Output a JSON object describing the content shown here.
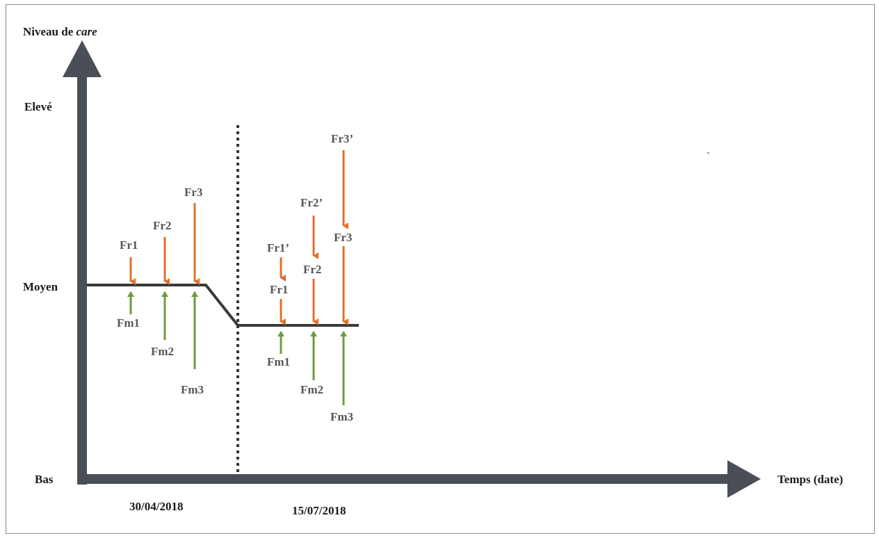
{
  "axes": {
    "y_title_prefix": "Niveau de",
    "y_title_emphasis": "care",
    "y_levels": {
      "high": "Elevé",
      "mid": "Moyen",
      "low": "Bas"
    },
    "x_title": "Temps (date)",
    "dates": [
      "30/04/2018",
      "15/07/2018"
    ]
  },
  "colors": {
    "axis": "#4a4f57",
    "level_line": "#3a3a3a",
    "risk_arrow": "#e0712c",
    "mitigation_arrow": "#6a9e3b",
    "divider": "#333333",
    "label": "#555555"
  },
  "period1": {
    "risk": [
      {
        "label": "Fr1"
      },
      {
        "label": "Fr2"
      },
      {
        "label": "Fr3"
      }
    ],
    "mitigation": [
      {
        "label": "Fm1"
      },
      {
        "label": "Fm2"
      },
      {
        "label": "Fm3"
      }
    ]
  },
  "period2": {
    "risk_upper": [
      {
        "label": "Fr1’"
      },
      {
        "label": "Fr2’"
      },
      {
        "label": "Fr3’"
      }
    ],
    "risk_lower": [
      {
        "label": "Fr1"
      },
      {
        "label": "Fr2"
      },
      {
        "label": "Fr3"
      }
    ],
    "mitigation": [
      {
        "label": "Fm1"
      },
      {
        "label": "Fm2"
      },
      {
        "label": "Fm3"
      }
    ]
  }
}
